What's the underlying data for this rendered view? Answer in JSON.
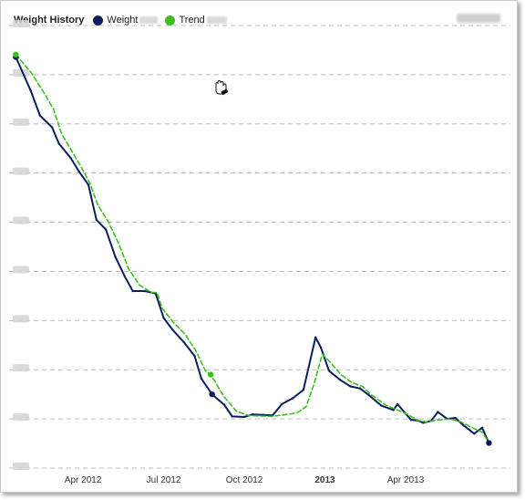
{
  "header": {
    "title": "Weight History",
    "legend": [
      {
        "label": "Weight",
        "color": "#0b1f5c"
      },
      {
        "label": "Trend",
        "color": "#3cbf1e"
      }
    ]
  },
  "cursor_icon": "hand-cursor-icon",
  "chart_data": {
    "type": "line",
    "title": "Weight History",
    "x_ticks": [
      {
        "label": "Apr 2012",
        "x": 3.0
      },
      {
        "label": "Jul 2012",
        "x": 6.0
      },
      {
        "label": "Oct 2012",
        "x": 9.0
      },
      {
        "label": "2013",
        "x": 12.0,
        "bold": true
      },
      {
        "label": "Apr 2013",
        "x": 15.0
      }
    ],
    "xlim": [
      0.25,
      18.9
    ],
    "ylim": [
      0,
      9
    ],
    "gridlines_y": [
      0,
      1,
      2,
      3,
      4,
      5,
      6,
      7,
      8,
      9
    ],
    "grid": "dashed horizontal",
    "series": [
      {
        "name": "Weight",
        "color": "#0b1f5c",
        "style": "solid",
        "points": [
          [
            0.5,
            8.36
          ],
          [
            1.05,
            7.68
          ],
          [
            1.4,
            7.17
          ],
          [
            1.85,
            6.93
          ],
          [
            2.1,
            6.6
          ],
          [
            2.55,
            6.3
          ],
          [
            2.85,
            6.03
          ],
          [
            3.2,
            5.76
          ],
          [
            3.5,
            5.05
          ],
          [
            3.85,
            4.85
          ],
          [
            4.2,
            4.3
          ],
          [
            4.55,
            3.9
          ],
          [
            4.85,
            3.6
          ],
          [
            5.3,
            3.6
          ],
          [
            5.7,
            3.55
          ],
          [
            6.0,
            3.05
          ],
          [
            6.35,
            2.8
          ],
          [
            6.75,
            2.56
          ],
          [
            7.15,
            2.28
          ],
          [
            7.4,
            1.82
          ],
          [
            7.8,
            1.5
          ],
          [
            8.25,
            1.29
          ],
          [
            8.55,
            1.05
          ],
          [
            9.0,
            1.04
          ],
          [
            9.3,
            1.09
          ],
          [
            9.7,
            1.08
          ],
          [
            10.05,
            1.07
          ],
          [
            10.4,
            1.3
          ],
          [
            10.8,
            1.42
          ],
          [
            11.2,
            1.59
          ],
          [
            11.65,
            2.66
          ],
          [
            11.85,
            2.45
          ],
          [
            12.15,
            1.98
          ],
          [
            12.55,
            1.8
          ],
          [
            12.95,
            1.66
          ],
          [
            13.3,
            1.62
          ],
          [
            13.6,
            1.5
          ],
          [
            14.1,
            1.27
          ],
          [
            14.55,
            1.18
          ],
          [
            14.7,
            1.3
          ],
          [
            15.2,
            0.98
          ],
          [
            15.45,
            0.97
          ],
          [
            15.65,
            0.92
          ],
          [
            15.95,
            0.96
          ],
          [
            16.2,
            1.14
          ],
          [
            16.55,
            1.0
          ],
          [
            16.85,
            1.02
          ],
          [
            17.15,
            0.87
          ],
          [
            17.55,
            0.7
          ],
          [
            17.85,
            0.82
          ],
          [
            18.1,
            0.51
          ]
        ]
      },
      {
        "name": "Trend",
        "color": "#3cbf1e",
        "style": "dashed",
        "points": [
          [
            0.5,
            8.41
          ],
          [
            1.1,
            8.02
          ],
          [
            1.55,
            7.63
          ],
          [
            1.9,
            7.3
          ],
          [
            2.2,
            6.8
          ],
          [
            2.55,
            6.48
          ],
          [
            2.85,
            6.2
          ],
          [
            3.25,
            5.8
          ],
          [
            3.55,
            5.35
          ],
          [
            3.95,
            5.0
          ],
          [
            4.3,
            4.6
          ],
          [
            4.7,
            4.05
          ],
          [
            5.1,
            3.72
          ],
          [
            5.55,
            3.57
          ],
          [
            5.75,
            3.57
          ],
          [
            5.95,
            3.25
          ],
          [
            6.35,
            2.97
          ],
          [
            6.8,
            2.72
          ],
          [
            7.2,
            2.38
          ],
          [
            7.55,
            1.98
          ],
          [
            7.75,
            1.9
          ],
          [
            8.25,
            1.45
          ],
          [
            8.7,
            1.16
          ],
          [
            9.15,
            1.07
          ],
          [
            9.6,
            1.06
          ],
          [
            10.0,
            1.05
          ],
          [
            10.45,
            1.08
          ],
          [
            10.95,
            1.12
          ],
          [
            11.3,
            1.25
          ],
          [
            11.6,
            1.72
          ],
          [
            11.9,
            2.32
          ],
          [
            12.2,
            2.15
          ],
          [
            12.6,
            1.9
          ],
          [
            13.0,
            1.74
          ],
          [
            13.4,
            1.66
          ],
          [
            13.75,
            1.48
          ],
          [
            14.3,
            1.27
          ],
          [
            14.7,
            1.18
          ],
          [
            15.05,
            1.1
          ],
          [
            15.45,
            0.97
          ],
          [
            15.75,
            0.94
          ],
          [
            16.25,
            0.98
          ],
          [
            16.65,
            1.0
          ],
          [
            17.05,
            0.94
          ],
          [
            17.45,
            0.83
          ],
          [
            17.85,
            0.73
          ],
          [
            18.1,
            0.52
          ]
        ]
      }
    ],
    "markers": [
      {
        "series": "Weight",
        "x": 0.5,
        "y": 8.36
      },
      {
        "series": "Trend",
        "x": 0.5,
        "y": 8.41
      },
      {
        "series": "Weight",
        "x": 7.8,
        "y": 1.5
      },
      {
        "series": "Trend",
        "x": 7.75,
        "y": 1.9
      },
      {
        "series": "Weight",
        "x": 18.1,
        "y": 0.51
      }
    ]
  }
}
